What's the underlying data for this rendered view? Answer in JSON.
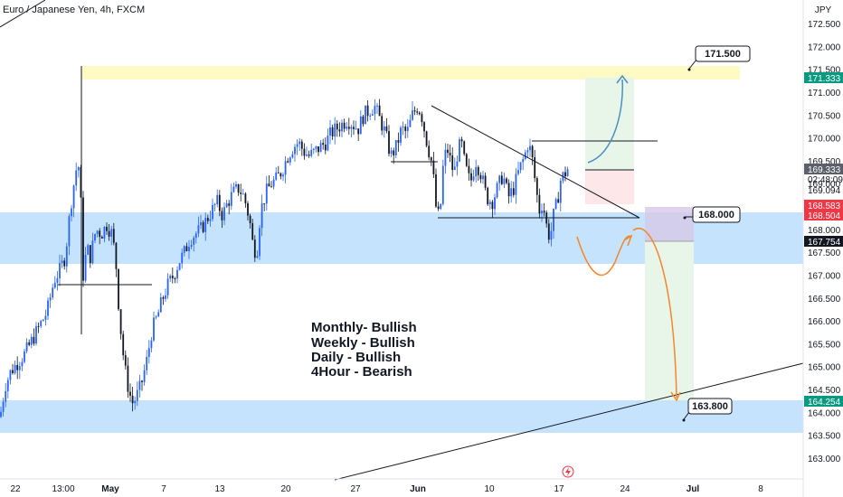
{
  "header": {
    "title": "Euro / Japanese Yen, 4h, FXCM"
  },
  "currency": "JPY",
  "colors": {
    "bull": "#2962ff",
    "bear": "#131722",
    "zone_blue": "#bbdefb",
    "zone_yellow": "#fff9c4",
    "target_green": "#e8f5e9",
    "stop_red": "#fde7e9",
    "orange": "#f5862c",
    "blue_curve": "#4a90c2"
  },
  "chart_data": {
    "type": "line",
    "title": "Euro / Japanese Yen, 4h, FXCM",
    "ylabel": "JPY",
    "ylim": [
      162.8,
      173.0
    ],
    "y_ticks": [
      "172.500",
      "172.000",
      "171.500",
      "171.000",
      "170.500",
      "170.000",
      "169.500",
      "169.000",
      "168.500",
      "168.000",
      "167.500",
      "167.000",
      "166.500",
      "166.000",
      "165.500",
      "165.000",
      "164.500",
      "164.000",
      "163.500",
      "163.000"
    ],
    "x_ticks": [
      "22",
      "13:00",
      "May",
      "7",
      "13",
      "20",
      "27",
      "Jun",
      "10",
      "17",
      "24",
      "Jul",
      "8"
    ],
    "price_path": [
      [
        0,
        163.9
      ],
      [
        6,
        164.6
      ],
      [
        12,
        164.9
      ],
      [
        20,
        165.1
      ],
      [
        28,
        165.3
      ],
      [
        36,
        165.6
      ],
      [
        44,
        165.9
      ],
      [
        52,
        166.2
      ],
      [
        60,
        166.9
      ],
      [
        66,
        167.1
      ],
      [
        72,
        167.4
      ],
      [
        78,
        168.5
      ],
      [
        84,
        169.3
      ],
      [
        88,
        169.4
      ],
      [
        92,
        167.0
      ],
      [
        96,
        167.6
      ],
      [
        100,
        167.4
      ],
      [
        106,
        168.0
      ],
      [
        112,
        167.9
      ],
      [
        118,
        168.1
      ],
      [
        124,
        167.9
      ],
      [
        128,
        167.3
      ],
      [
        132,
        166.1
      ],
      [
        136,
        165.3
      ],
      [
        140,
        164.7
      ],
      [
        146,
        164.2
      ],
      [
        150,
        164.3
      ],
      [
        156,
        164.6
      ],
      [
        162,
        165.1
      ],
      [
        168,
        165.8
      ],
      [
        174,
        166.1
      ],
      [
        180,
        166.5
      ],
      [
        186,
        166.8
      ],
      [
        192,
        167.0
      ],
      [
        198,
        167.3
      ],
      [
        204,
        167.5
      ],
      [
        210,
        167.8
      ],
      [
        216,
        167.9
      ],
      [
        222,
        168.0
      ],
      [
        228,
        168.2
      ],
      [
        234,
        168.4
      ],
      [
        240,
        168.6
      ],
      [
        246,
        168.3
      ],
      [
        252,
        168.6
      ],
      [
        258,
        168.8
      ],
      [
        264,
        168.9
      ],
      [
        270,
        168.7
      ],
      [
        276,
        168.2
      ],
      [
        280,
        167.6
      ],
      [
        284,
        167.5
      ],
      [
        288,
        168.4
      ],
      [
        294,
        168.8
      ],
      [
        300,
        169.0
      ],
      [
        306,
        169.1
      ],
      [
        312,
        169.3
      ],
      [
        318,
        169.6
      ],
      [
        324,
        169.8
      ],
      [
        330,
        169.9
      ],
      [
        336,
        169.7
      ],
      [
        342,
        169.6
      ],
      [
        348,
        169.7
      ],
      [
        354,
        169.8
      ],
      [
        360,
        169.9
      ],
      [
        366,
        170.1
      ],
      [
        372,
        170.2
      ],
      [
        378,
        170.3
      ],
      [
        384,
        170.4
      ],
      [
        390,
        170.3
      ],
      [
        396,
        170.2
      ],
      [
        402,
        170.5
      ],
      [
        408,
        170.6
      ],
      [
        414,
        170.7
      ],
      [
        420,
        170.4
      ],
      [
        426,
        170.1
      ],
      [
        432,
        169.6
      ],
      [
        438,
        169.8
      ],
      [
        444,
        170.2
      ],
      [
        450,
        170.1
      ],
      [
        456,
        170.5
      ],
      [
        462,
        170.7
      ],
      [
        466,
        170.5
      ],
      [
        472,
        169.9
      ],
      [
        478,
        169.4
      ],
      [
        482,
        168.5
      ],
      [
        486,
        168.2
      ],
      [
        490,
        169.4
      ],
      [
        494,
        169.8
      ],
      [
        498,
        169.5
      ],
      [
        502,
        169.2
      ],
      [
        506,
        169.7
      ],
      [
        510,
        169.9
      ],
      [
        514,
        169.4
      ],
      [
        520,
        169.0
      ],
      [
        526,
        169.5
      ],
      [
        532,
        169.2
      ],
      [
        538,
        168.7
      ],
      [
        544,
        168.6
      ],
      [
        550,
        168.9
      ],
      [
        556,
        169.2
      ],
      [
        562,
        168.7
      ],
      [
        568,
        168.9
      ],
      [
        574,
        169.3
      ],
      [
        580,
        169.6
      ],
      [
        584,
        169.9
      ],
      [
        588,
        169.6
      ],
      [
        592,
        169.0
      ],
      [
        596,
        168.4
      ],
      [
        600,
        168.6
      ],
      [
        604,
        168.1
      ],
      [
        608,
        167.8
      ],
      [
        612,
        168.3
      ],
      [
        616,
        168.6
      ],
      [
        620,
        169.1
      ],
      [
        624,
        169.2
      ],
      [
        628,
        169.33
      ]
    ],
    "levels": {
      "top_target": 171.5,
      "mid_level": 168.0,
      "bottom_target": 163.8
    },
    "price_tags": [
      {
        "value": "171.333",
        "kind": "green"
      },
      {
        "value": "169.333",
        "kind": "dark"
      },
      {
        "value": "02:48:09",
        "kind": "plain"
      },
      {
        "value": "169.094",
        "kind": "plain"
      },
      {
        "value": "168.583",
        "kind": "red"
      },
      {
        "value": "168.504",
        "kind": "red"
      },
      {
        "value": "167.754",
        "kind": "black"
      },
      {
        "value": "164.254",
        "kind": "green"
      }
    ]
  },
  "annotations": {
    "callout_top": "171.500",
    "callout_mid": "168.000",
    "callout_bottom": "163.800",
    "bias_lines": [
      "Monthly- Bullish",
      "Weekly - Bullish",
      "Daily - Bullish",
      "4Hour - Bearish"
    ]
  }
}
